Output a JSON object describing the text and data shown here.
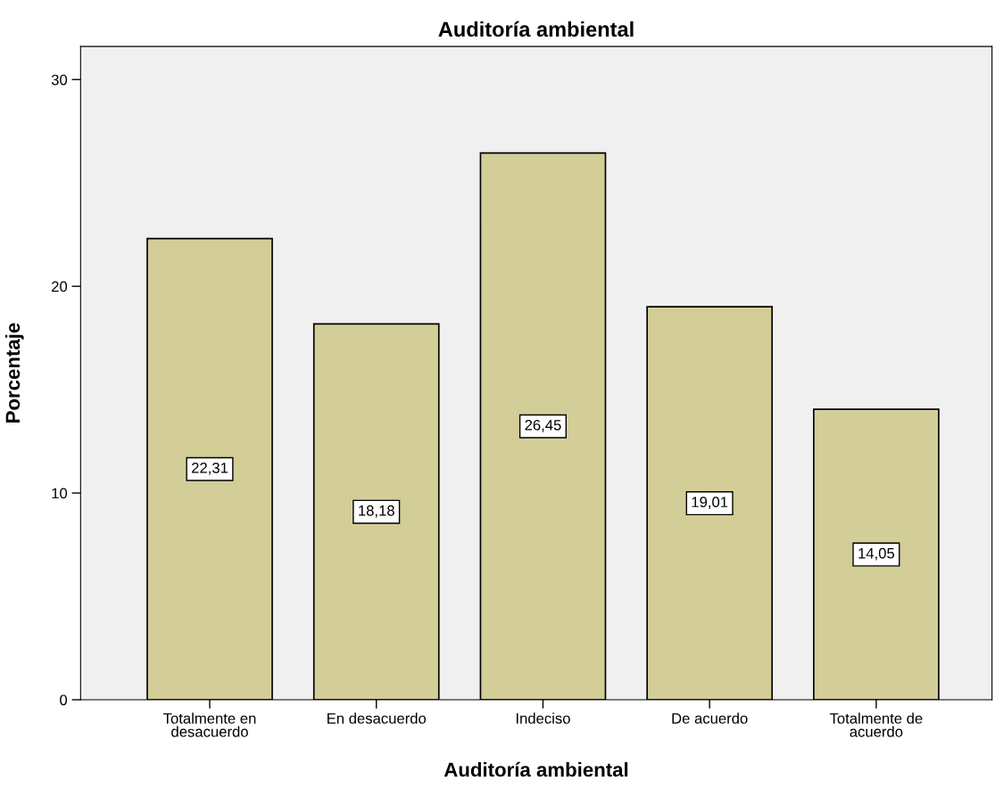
{
  "chart_data": {
    "type": "bar",
    "title": "Auditoría ambiental",
    "xlabel": "Auditoría ambiental",
    "ylabel": "Porcentaje",
    "categories": [
      "Totalmente en\ndesacuerdo",
      "En desacuerdo",
      "Indeciso",
      "De acuerdo",
      "Totalmente de\nacuerdo"
    ],
    "values": [
      22.31,
      18.18,
      26.45,
      19.01,
      14.05
    ],
    "value_labels": [
      "22,31",
      "18,18",
      "26,45",
      "19,01",
      "14,05"
    ],
    "color": "#d3ce98",
    "ylim": [
      0,
      31.6
    ],
    "yticks": [
      0,
      10,
      20,
      30
    ],
    "grid": false,
    "legend": false
  }
}
